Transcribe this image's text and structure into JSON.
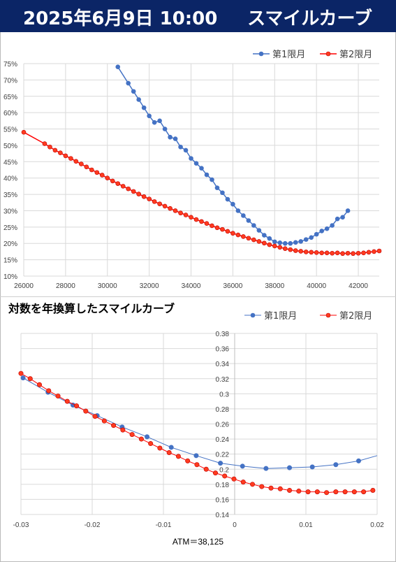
{
  "header": {
    "date": "2025年6月9日 10:00",
    "title": "スマイルカーブ"
  },
  "chart2_title": "対数を年換算したスマイルカーブ",
  "atm_label": "ATM＝38,125",
  "colors": {
    "series1": "#4472c4",
    "series2": "#ff0000",
    "series2_fill": "#ff3b1f",
    "grid": "#d9d9d9",
    "header_bg": "#0b2566"
  },
  "chart_data": [
    {
      "type": "line",
      "xlim": [
        26000,
        43000
      ],
      "ylim": [
        10,
        75
      ],
      "x_ticks": [
        26000,
        28000,
        30000,
        32000,
        34000,
        36000,
        38000,
        40000,
        42000
      ],
      "y_ticks": [
        10,
        15,
        20,
        25,
        30,
        35,
        40,
        45,
        50,
        55,
        60,
        65,
        70,
        75
      ],
      "y_format": "percent",
      "grid": true,
      "legend": "top-right",
      "series": [
        {
          "name": "第1限月",
          "x": [
            30500,
            31000,
            31250,
            31500,
            31750,
            32000,
            32250,
            32500,
            32750,
            33000,
            33250,
            33500,
            33750,
            34000,
            34250,
            34500,
            34750,
            35000,
            35250,
            35500,
            35750,
            36000,
            36250,
            36500,
            36750,
            37000,
            37250,
            37500,
            37750,
            38000,
            38250,
            38500,
            38750,
            39000,
            39250,
            39500,
            39750,
            40000,
            40250,
            40500,
            40750,
            41000,
            41250,
            41500
          ],
          "y": [
            74.0,
            69.0,
            66.5,
            64.0,
            61.5,
            59.0,
            57.0,
            57.5,
            55.0,
            52.5,
            52.0,
            49.5,
            48.5,
            46.0,
            44.5,
            43.0,
            41.0,
            39.5,
            37.0,
            35.5,
            33.5,
            32.0,
            30.0,
            28.5,
            27.0,
            25.5,
            24.0,
            22.5,
            21.5,
            20.5,
            20.2,
            20.0,
            20.0,
            20.3,
            20.6,
            21.2,
            21.8,
            22.8,
            23.8,
            24.5,
            25.5,
            27.5,
            28.0,
            30.0
          ]
        },
        {
          "name": "第2限月",
          "x": [
            26000,
            27000,
            27250,
            27500,
            27750,
            28000,
            28250,
            28500,
            28750,
            29000,
            29250,
            29500,
            29750,
            30000,
            30250,
            30500,
            30750,
            31000,
            31250,
            31500,
            31750,
            32000,
            32250,
            32500,
            32750,
            33000,
            33250,
            33500,
            33750,
            34000,
            34250,
            34500,
            34750,
            35000,
            35250,
            35500,
            35750,
            36000,
            36250,
            36500,
            36750,
            37000,
            37250,
            37500,
            37750,
            38000,
            38250,
            38500,
            38750,
            39000,
            39250,
            39500,
            39750,
            40000,
            40250,
            40500,
            40750,
            41000,
            41250,
            41500,
            41750,
            42000,
            42250,
            42500,
            42750,
            43000
          ],
          "y": [
            54.0,
            50.5,
            49.5,
            48.5,
            47.7,
            46.8,
            46.0,
            45.1,
            44.3,
            43.4,
            42.5,
            41.7,
            40.9,
            40.0,
            39.1,
            38.3,
            37.5,
            36.7,
            35.9,
            35.1,
            34.3,
            33.6,
            32.8,
            32.1,
            31.4,
            30.7,
            30.0,
            29.3,
            28.7,
            28.0,
            27.3,
            26.7,
            26.1,
            25.4,
            24.8,
            24.3,
            23.7,
            23.1,
            22.6,
            22.1,
            21.6,
            21.1,
            20.6,
            20.1,
            19.6,
            19.2,
            18.8,
            18.4,
            18.1,
            17.8,
            17.6,
            17.4,
            17.3,
            17.2,
            17.1,
            17.1,
            17.0,
            17.1,
            16.9,
            17.0,
            16.9,
            17.0,
            17.1,
            17.3,
            17.5,
            17.7
          ]
        }
      ]
    },
    {
      "type": "line",
      "title": "対数を年換算したスマイルカーブ",
      "xlabel": "ATM＝38,125",
      "xlim": [
        -0.03,
        0.02
      ],
      "ylim": [
        0.14,
        0.38
      ],
      "x_ticks": [
        -0.03,
        -0.02,
        -0.01,
        0,
        0.01,
        0.02
      ],
      "x_tick_labels": [
        "-0.03",
        "-0.02",
        "-0.01",
        "0",
        "0.01",
        "0.02"
      ],
      "y_ticks": [
        0.14,
        0.16,
        0.18,
        0.2,
        0.22,
        0.24,
        0.26,
        0.28,
        0.3,
        0.32,
        0.34,
        0.36,
        0.38
      ],
      "y_tick_labels": [
        "0.14",
        "0.16",
        "0.18",
        "0.2",
        "0.22",
        "0.24",
        "0.26",
        "0.28",
        "0.3",
        "0.32",
        "0.34",
        "0.36",
        "0.38"
      ],
      "grid": true,
      "legend": "top-right",
      "series": [
        {
          "name": "第1限月",
          "x": [
            -0.0297,
            -0.0262,
            -0.0227,
            -0.0193,
            -0.0158,
            -0.0123,
            -0.0089,
            -0.0054,
            -0.002,
            0.0011,
            0.0044,
            0.0077,
            0.0109,
            0.0142,
            0.0174,
            0.02
          ],
          "y": [
            0.321,
            0.302,
            0.285,
            0.271,
            0.256,
            0.243,
            0.229,
            0.218,
            0.208,
            0.204,
            0.201,
            0.202,
            0.203,
            0.206,
            0.211,
            0.218
          ]
        },
        {
          "name": "第2限月",
          "x": [
            -0.03,
            -0.0287,
            -0.0274,
            -0.0261,
            -0.0248,
            -0.0235,
            -0.0222,
            -0.0209,
            -0.0196,
            -0.0183,
            -0.017,
            -0.0157,
            -0.0144,
            -0.0131,
            -0.0118,
            -0.0105,
            -0.0092,
            -0.0079,
            -0.0066,
            -0.0053,
            -0.004,
            -0.0027,
            -0.0014,
            -0.0001,
            0.0012,
            0.0025,
            0.0038,
            0.0051,
            0.0064,
            0.0077,
            0.009,
            0.0103,
            0.0116,
            0.0129,
            0.0142,
            0.0155,
            0.0168,
            0.0181,
            0.0194
          ],
          "y": [
            0.327,
            0.32,
            0.312,
            0.304,
            0.297,
            0.29,
            0.284,
            0.277,
            0.27,
            0.264,
            0.258,
            0.252,
            0.246,
            0.24,
            0.234,
            0.228,
            0.222,
            0.217,
            0.211,
            0.206,
            0.2,
            0.195,
            0.191,
            0.187,
            0.183,
            0.18,
            0.177,
            0.175,
            0.174,
            0.172,
            0.171,
            0.17,
            0.17,
            0.169,
            0.17,
            0.17,
            0.17,
            0.17,
            0.172
          ]
        }
      ]
    }
  ]
}
